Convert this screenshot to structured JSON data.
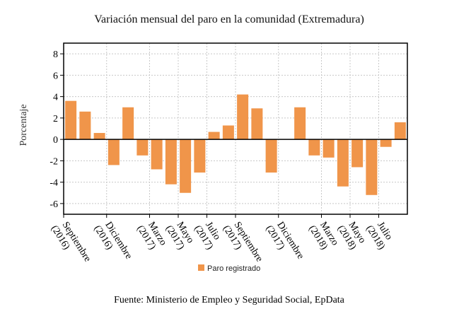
{
  "chart_data": {
    "type": "bar",
    "title": "Variación mensual del paro en la comunidad (Extremadura)",
    "ylabel": "Porcentaje",
    "xlabel": "",
    "ylim": [
      -7,
      9
    ],
    "yticks": [
      -6,
      -4,
      -2,
      0,
      2,
      4,
      6,
      8
    ],
    "grid": true,
    "legend_position": "bottom",
    "bar_color": "#f0954a",
    "series": [
      {
        "name": "Paro registrado",
        "values": [
          3.6,
          2.6,
          0.6,
          -2.4,
          3.0,
          -1.5,
          -2.8,
          -4.2,
          -5.0,
          -3.1,
          0.7,
          1.3,
          4.2,
          2.9,
          -3.1,
          0.0,
          3.0,
          -1.5,
          -1.7,
          -4.4,
          -2.6,
          -5.2,
          -0.7,
          1.6
        ]
      }
    ],
    "x_tick_labels": [
      {
        "bar_index": 0,
        "lines": [
          "Septiembre",
          "(2016)"
        ]
      },
      {
        "bar_index": 3,
        "lines": [
          "Diciembre",
          "(2016)"
        ]
      },
      {
        "bar_index": 6,
        "lines": [
          "Marzo",
          "(2017)"
        ]
      },
      {
        "bar_index": 8,
        "lines": [
          "Mayo",
          "(2017)"
        ]
      },
      {
        "bar_index": 10,
        "lines": [
          "Julio",
          "(2017)"
        ]
      },
      {
        "bar_index": 12,
        "lines": [
          "Septiembre",
          "(2017)"
        ]
      },
      {
        "bar_index": 15,
        "lines": [
          "Diciembre",
          "(2017)"
        ]
      },
      {
        "bar_index": 18,
        "lines": [
          "Marzo",
          "(2018)"
        ]
      },
      {
        "bar_index": 20,
        "lines": [
          "Mayo",
          "(2018)"
        ]
      },
      {
        "bar_index": 22,
        "lines": [
          "Julio",
          "(2018)"
        ]
      }
    ]
  },
  "source": "Fuente: Ministerio de Empleo y Seguridad Social, EpData"
}
